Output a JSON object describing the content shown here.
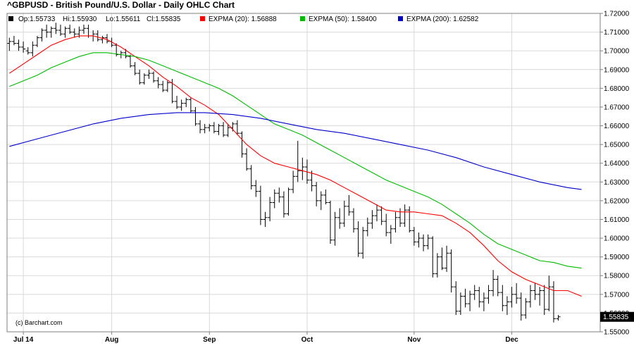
{
  "chart_data": {
    "type": "line",
    "title": "^GBPUSD - British Pound/U.S. Dollar - Daily OHLC Chart",
    "credit": "(c) Barchart.com",
    "ohlc_label": {
      "open": "Op:1.55733",
      "high": "Hi:1.55930",
      "low": "Lo:1.55611",
      "close": "Cl:1.55835"
    },
    "last_price_label": "1.55835",
    "x_ticks": [
      {
        "label": "Jul 14",
        "day": 3
      },
      {
        "label": "Aug",
        "day": 22
      },
      {
        "label": "Sep",
        "day": 43
      },
      {
        "label": "Oct",
        "day": 64
      },
      {
        "label": "Nov",
        "day": 87
      },
      {
        "label": "Dec",
        "day": 108
      }
    ],
    "y_ticks": [
      "1.55000",
      "1.56000",
      "1.57000",
      "1.58000",
      "1.59000",
      "1.60000",
      "1.61000",
      "1.62000",
      "1.63000",
      "1.64000",
      "1.65000",
      "1.66000",
      "1.67000",
      "1.68000",
      "1.69000",
      "1.70000",
      "1.71000",
      "1.72000"
    ],
    "ylim": [
      1.55,
      1.72
    ],
    "grid": true,
    "series": [
      {
        "name": "EXPMA (20): 1.56888",
        "color": "#ff0000",
        "values": [
          [
            0,
            1.688
          ],
          [
            3,
            1.693
          ],
          [
            6,
            1.698
          ],
          [
            9,
            1.703
          ],
          [
            12,
            1.706
          ],
          [
            15,
            1.708
          ],
          [
            18,
            1.708
          ],
          [
            21,
            1.706
          ],
          [
            24,
            1.702
          ],
          [
            27,
            1.697
          ],
          [
            30,
            1.692
          ],
          [
            33,
            1.686
          ],
          [
            36,
            1.681
          ],
          [
            39,
            1.675
          ],
          [
            42,
            1.671
          ],
          [
            45,
            1.666
          ],
          [
            48,
            1.658
          ],
          [
            51,
            1.65
          ],
          [
            54,
            1.644
          ],
          [
            57,
            1.64
          ],
          [
            60,
            1.638
          ],
          [
            63,
            1.636
          ],
          [
            66,
            1.634
          ],
          [
            69,
            1.631
          ],
          [
            72,
            1.627
          ],
          [
            75,
            1.623
          ],
          [
            78,
            1.619
          ],
          [
            81,
            1.615
          ],
          [
            84,
            1.614
          ],
          [
            87,
            1.614
          ],
          [
            90,
            1.613
          ],
          [
            93,
            1.612
          ],
          [
            96,
            1.608
          ],
          [
            99,
            1.603
          ],
          [
            102,
            1.596
          ],
          [
            105,
            1.588
          ],
          [
            108,
            1.582
          ],
          [
            111,
            1.578
          ],
          [
            114,
            1.575
          ],
          [
            117,
            1.572
          ],
          [
            120,
            1.572
          ],
          [
            123,
            1.569
          ]
        ]
      },
      {
        "name": "EXPMA (50): 1.58400",
        "color": "#00bb00",
        "values": [
          [
            0,
            1.681
          ],
          [
            3,
            1.684
          ],
          [
            6,
            1.687
          ],
          [
            9,
            1.691
          ],
          [
            12,
            1.694
          ],
          [
            15,
            1.697
          ],
          [
            18,
            1.699
          ],
          [
            21,
            1.699
          ],
          [
            24,
            1.698
          ],
          [
            27,
            1.697
          ],
          [
            30,
            1.695
          ],
          [
            33,
            1.692
          ],
          [
            36,
            1.689
          ],
          [
            39,
            1.686
          ],
          [
            42,
            1.683
          ],
          [
            45,
            1.68
          ],
          [
            48,
            1.676
          ],
          [
            51,
            1.671
          ],
          [
            54,
            1.666
          ],
          [
            57,
            1.661
          ],
          [
            60,
            1.658
          ],
          [
            63,
            1.655
          ],
          [
            66,
            1.651
          ],
          [
            69,
            1.647
          ],
          [
            72,
            1.643
          ],
          [
            75,
            1.639
          ],
          [
            78,
            1.635
          ],
          [
            81,
            1.631
          ],
          [
            84,
            1.628
          ],
          [
            87,
            1.625
          ],
          [
            90,
            1.622
          ],
          [
            93,
            1.618
          ],
          [
            96,
            1.613
          ],
          [
            99,
            1.608
          ],
          [
            102,
            1.602
          ],
          [
            105,
            1.597
          ],
          [
            108,
            1.594
          ],
          [
            111,
            1.591
          ],
          [
            114,
            1.588
          ],
          [
            117,
            1.587
          ],
          [
            120,
            1.585
          ],
          [
            123,
            1.584
          ]
        ]
      },
      {
        "name": "EXPMA (200): 1.62582",
        "color": "#0000cc",
        "values": [
          [
            0,
            1.649
          ],
          [
            6,
            1.653
          ],
          [
            12,
            1.657
          ],
          [
            18,
            1.661
          ],
          [
            24,
            1.664
          ],
          [
            30,
            1.666
          ],
          [
            36,
            1.667
          ],
          [
            42,
            1.667
          ],
          [
            48,
            1.666
          ],
          [
            54,
            1.664
          ],
          [
            60,
            1.661
          ],
          [
            66,
            1.658
          ],
          [
            72,
            1.656
          ],
          [
            78,
            1.653
          ],
          [
            84,
            1.65
          ],
          [
            90,
            1.647
          ],
          [
            96,
            1.643
          ],
          [
            102,
            1.638
          ],
          [
            108,
            1.634
          ],
          [
            114,
            1.63
          ],
          [
            120,
            1.627
          ],
          [
            123,
            1.626
          ]
        ]
      }
    ],
    "bars": [
      [
        0,
        1.704,
        1.707,
        1.7,
        1.705
      ],
      [
        1,
        1.705,
        1.708,
        1.703,
        1.704
      ],
      [
        2,
        1.704,
        1.706,
        1.7,
        1.702
      ],
      [
        3,
        1.702,
        1.705,
        1.699,
        1.701
      ],
      [
        4,
        1.7,
        1.702,
        1.698,
        1.699
      ],
      [
        5,
        1.699,
        1.705,
        1.697,
        1.703
      ],
      [
        6,
        1.703,
        1.708,
        1.702,
        1.707
      ],
      [
        7,
        1.707,
        1.712,
        1.705,
        1.711
      ],
      [
        8,
        1.711,
        1.714,
        1.707,
        1.71
      ],
      [
        9,
        1.71,
        1.713,
        1.707,
        1.712
      ],
      [
        10,
        1.712,
        1.715,
        1.709,
        1.711
      ],
      [
        11,
        1.711,
        1.714,
        1.708,
        1.709
      ],
      [
        12,
        1.709,
        1.713,
        1.707,
        1.712
      ],
      [
        13,
        1.712,
        1.714,
        1.709,
        1.71
      ],
      [
        14,
        1.71,
        1.712,
        1.707,
        1.709
      ],
      [
        15,
        1.709,
        1.713,
        1.707,
        1.711
      ],
      [
        16,
        1.711,
        1.714,
        1.709,
        1.712
      ],
      [
        17,
        1.712,
        1.714,
        1.707,
        1.708
      ],
      [
        18,
        1.708,
        1.711,
        1.705,
        1.709
      ],
      [
        19,
        1.709,
        1.711,
        1.705,
        1.706
      ],
      [
        20,
        1.706,
        1.708,
        1.704,
        1.707
      ],
      [
        21,
        1.707,
        1.709,
        1.704,
        1.705
      ],
      [
        22,
        1.705,
        1.707,
        1.702,
        1.703
      ],
      [
        23,
        1.703,
        1.704,
        1.697,
        1.698
      ],
      [
        24,
        1.698,
        1.7,
        1.696,
        1.699
      ],
      [
        25,
        1.699,
        1.701,
        1.696,
        1.697
      ],
      [
        26,
        1.697,
        1.698,
        1.691,
        1.692
      ],
      [
        27,
        1.692,
        1.694,
        1.687,
        1.688
      ],
      [
        28,
        1.688,
        1.69,
        1.682,
        1.683
      ],
      [
        29,
        1.683,
        1.688,
        1.682,
        1.687
      ],
      [
        30,
        1.687,
        1.69,
        1.685,
        1.688
      ],
      [
        31,
        1.688,
        1.689,
        1.683,
        1.684
      ],
      [
        32,
        1.684,
        1.686,
        1.68,
        1.682
      ],
      [
        33,
        1.682,
        1.684,
        1.678,
        1.679
      ],
      [
        34,
        1.679,
        1.684,
        1.678,
        1.683
      ],
      [
        35,
        1.683,
        1.685,
        1.672,
        1.673
      ],
      [
        36,
        1.673,
        1.676,
        1.669,
        1.67
      ],
      [
        37,
        1.67,
        1.674,
        1.668,
        1.672
      ],
      [
        38,
        1.672,
        1.675,
        1.67,
        1.674
      ],
      [
        39,
        1.674,
        1.675,
        1.667,
        1.668
      ],
      [
        40,
        1.668,
        1.67,
        1.66,
        1.661
      ],
      [
        41,
        1.661,
        1.663,
        1.656,
        1.658
      ],
      [
        42,
        1.658,
        1.661,
        1.656,
        1.659
      ],
      [
        43,
        1.659,
        1.661,
        1.657,
        1.66
      ],
      [
        44,
        1.66,
        1.662,
        1.656,
        1.657
      ],
      [
        45,
        1.657,
        1.661,
        1.655,
        1.66
      ],
      [
        46,
        1.66,
        1.662,
        1.654,
        1.655
      ],
      [
        47,
        1.655,
        1.661,
        1.654,
        1.659
      ],
      [
        48,
        1.659,
        1.662,
        1.657,
        1.661
      ],
      [
        49,
        1.661,
        1.663,
        1.655,
        1.656
      ],
      [
        50,
        1.656,
        1.657,
        1.643,
        1.645
      ],
      [
        51,
        1.645,
        1.648,
        1.636,
        1.637
      ],
      [
        52,
        1.637,
        1.639,
        1.626,
        1.628
      ],
      [
        53,
        1.628,
        1.631,
        1.622,
        1.625
      ],
      [
        54,
        1.625,
        1.628,
        1.607,
        1.61
      ],
      [
        55,
        1.61,
        1.614,
        1.606,
        1.611
      ],
      [
        56,
        1.611,
        1.622,
        1.609,
        1.619
      ],
      [
        57,
        1.619,
        1.626,
        1.616,
        1.624
      ],
      [
        58,
        1.624,
        1.627,
        1.619,
        1.622
      ],
      [
        59,
        1.622,
        1.625,
        1.611,
        1.613
      ],
      [
        60,
        1.613,
        1.627,
        1.612,
        1.626
      ],
      [
        61,
        1.626,
        1.636,
        1.624,
        1.633
      ],
      [
        62,
        1.633,
        1.652,
        1.63,
        1.636
      ],
      [
        63,
        1.636,
        1.643,
        1.631,
        1.638
      ],
      [
        64,
        1.638,
        1.642,
        1.629,
        1.631
      ],
      [
        65,
        1.631,
        1.636,
        1.625,
        1.628
      ],
      [
        66,
        1.628,
        1.63,
        1.617,
        1.62
      ],
      [
        67,
        1.62,
        1.625,
        1.615,
        1.623
      ],
      [
        68,
        1.623,
        1.626,
        1.618,
        1.619
      ],
      [
        69,
        1.619,
        1.62,
        1.597,
        1.599
      ],
      [
        70,
        1.599,
        1.614,
        1.596,
        1.611
      ],
      [
        71,
        1.611,
        1.616,
        1.605,
        1.608
      ],
      [
        72,
        1.608,
        1.62,
        1.606,
        1.617
      ],
      [
        73,
        1.617,
        1.623,
        1.612,
        1.614
      ],
      [
        74,
        1.614,
        1.616,
        1.603,
        1.605
      ],
      [
        75,
        1.605,
        1.609,
        1.59,
        1.592
      ],
      [
        76,
        1.592,
        1.606,
        1.589,
        1.604
      ],
      [
        77,
        1.604,
        1.611,
        1.601,
        1.608
      ],
      [
        78,
        1.608,
        1.615,
        1.605,
        1.612
      ],
      [
        79,
        1.612,
        1.618,
        1.609,
        1.615
      ],
      [
        80,
        1.615,
        1.617,
        1.607,
        1.609
      ],
      [
        81,
        1.609,
        1.613,
        1.601,
        1.603
      ],
      [
        82,
        1.603,
        1.607,
        1.597,
        1.605
      ],
      [
        83,
        1.605,
        1.614,
        1.603,
        1.611
      ],
      [
        84,
        1.611,
        1.616,
        1.606,
        1.608
      ],
      [
        85,
        1.608,
        1.618,
        1.606,
        1.615
      ],
      [
        86,
        1.615,
        1.617,
        1.603,
        1.604
      ],
      [
        87,
        1.604,
        1.606,
        1.596,
        1.598
      ],
      [
        88,
        1.598,
        1.603,
        1.595,
        1.6
      ],
      [
        89,
        1.6,
        1.602,
        1.593,
        1.596
      ],
      [
        90,
        1.596,
        1.602,
        1.594,
        1.6
      ],
      [
        91,
        1.6,
        1.601,
        1.579,
        1.581
      ],
      [
        92,
        1.581,
        1.592,
        1.579,
        1.59
      ],
      [
        93,
        1.59,
        1.595,
        1.583,
        1.584
      ],
      [
        94,
        1.584,
        1.596,
        1.582,
        1.592
      ],
      [
        95,
        1.592,
        1.594,
        1.571,
        1.574
      ],
      [
        96,
        1.574,
        1.577,
        1.559,
        1.561
      ],
      [
        97,
        1.561,
        1.571,
        1.559,
        1.569
      ],
      [
        98,
        1.569,
        1.573,
        1.563,
        1.565
      ],
      [
        99,
        1.565,
        1.572,
        1.561,
        1.57
      ],
      [
        100,
        1.57,
        1.575,
        1.567,
        1.572
      ],
      [
        101,
        1.572,
        1.574,
        1.563,
        1.566
      ],
      [
        102,
        1.566,
        1.571,
        1.561,
        1.568
      ],
      [
        103,
        1.568,
        1.575,
        1.565,
        1.572
      ],
      [
        104,
        1.572,
        1.583,
        1.569,
        1.578
      ],
      [
        105,
        1.578,
        1.58,
        1.569,
        1.571
      ],
      [
        106,
        1.571,
        1.575,
        1.561,
        1.564
      ],
      [
        107,
        1.564,
        1.569,
        1.559,
        1.566
      ],
      [
        108,
        1.566,
        1.574,
        1.563,
        1.57
      ],
      [
        109,
        1.57,
        1.576,
        1.565,
        1.568
      ],
      [
        110,
        1.568,
        1.571,
        1.556,
        1.559
      ],
      [
        111,
        1.559,
        1.568,
        1.557,
        1.566
      ],
      [
        112,
        1.566,
        1.575,
        1.563,
        1.572
      ],
      [
        113,
        1.572,
        1.576,
        1.567,
        1.57
      ],
      [
        114,
        1.57,
        1.574,
        1.564,
        1.572
      ],
      [
        115,
        1.572,
        1.575,
        1.559,
        1.562
      ],
      [
        116,
        1.562,
        1.58,
        1.561,
        1.574
      ],
      [
        117,
        1.574,
        1.577,
        1.555,
        1.557
      ],
      [
        118,
        1.557,
        1.559,
        1.556,
        1.558
      ]
    ],
    "bar_color": "#000000",
    "last_price_color": "#000000",
    "ohlc_marker_color": "#000000"
  }
}
